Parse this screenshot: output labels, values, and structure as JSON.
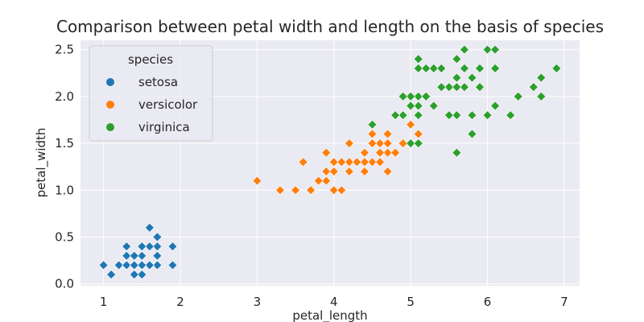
{
  "chart_data": {
    "type": "scatter",
    "title": "Comparison between petal width and length on the basis of species",
    "xlabel": "petal_length",
    "ylabel": "petal_width",
    "xlim": [
      0.7,
      7.2
    ],
    "ylim": [
      -0.02,
      2.6
    ],
    "xticks": [
      1,
      2,
      3,
      4,
      5,
      6,
      7
    ],
    "yticks": [
      0.0,
      0.5,
      1.0,
      1.5,
      2.0,
      2.5
    ],
    "grid": true,
    "marker": "diamond",
    "legend": {
      "title": "species",
      "position": "top-left"
    },
    "series": [
      {
        "name": "setosa",
        "color": "#1f77b4",
        "points": [
          [
            1.4,
            0.2
          ],
          [
            1.4,
            0.2
          ],
          [
            1.3,
            0.2
          ],
          [
            1.5,
            0.2
          ],
          [
            1.4,
            0.2
          ],
          [
            1.7,
            0.4
          ],
          [
            1.4,
            0.3
          ],
          [
            1.5,
            0.2
          ],
          [
            1.4,
            0.2
          ],
          [
            1.5,
            0.1
          ],
          [
            1.5,
            0.2
          ],
          [
            1.6,
            0.2
          ],
          [
            1.4,
            0.1
          ],
          [
            1.1,
            0.1
          ],
          [
            1.2,
            0.2
          ],
          [
            1.5,
            0.4
          ],
          [
            1.3,
            0.4
          ],
          [
            1.4,
            0.3
          ],
          [
            1.7,
            0.3
          ],
          [
            1.5,
            0.3
          ],
          [
            1.7,
            0.2
          ],
          [
            1.5,
            0.4
          ],
          [
            1.0,
            0.2
          ],
          [
            1.7,
            0.5
          ],
          [
            1.9,
            0.2
          ],
          [
            1.6,
            0.2
          ],
          [
            1.6,
            0.4
          ],
          [
            1.5,
            0.2
          ],
          [
            1.4,
            0.2
          ],
          [
            1.6,
            0.2
          ],
          [
            1.6,
            0.2
          ],
          [
            1.5,
            0.4
          ],
          [
            1.5,
            0.1
          ],
          [
            1.4,
            0.2
          ],
          [
            1.5,
            0.2
          ],
          [
            1.2,
            0.2
          ],
          [
            1.3,
            0.2
          ],
          [
            1.4,
            0.1
          ],
          [
            1.3,
            0.2
          ],
          [
            1.5,
            0.2
          ],
          [
            1.3,
            0.3
          ],
          [
            1.3,
            0.3
          ],
          [
            1.3,
            0.2
          ],
          [
            1.6,
            0.6
          ],
          [
            1.9,
            0.4
          ],
          [
            1.4,
            0.3
          ],
          [
            1.6,
            0.2
          ],
          [
            1.4,
            0.2
          ],
          [
            1.5,
            0.2
          ],
          [
            1.4,
            0.2
          ]
        ]
      },
      {
        "name": "versicolor",
        "color": "#ff7f0e",
        "points": [
          [
            4.7,
            1.4
          ],
          [
            4.5,
            1.5
          ],
          [
            4.9,
            1.5
          ],
          [
            4.0,
            1.3
          ],
          [
            4.6,
            1.5
          ],
          [
            4.5,
            1.3
          ],
          [
            4.7,
            1.6
          ],
          [
            3.3,
            1.0
          ],
          [
            4.6,
            1.3
          ],
          [
            3.9,
            1.4
          ],
          [
            3.5,
            1.0
          ],
          [
            4.2,
            1.5
          ],
          [
            4.0,
            1.0
          ],
          [
            4.7,
            1.4
          ],
          [
            3.6,
            1.3
          ],
          [
            4.4,
            1.4
          ],
          [
            4.5,
            1.5
          ],
          [
            4.1,
            1.0
          ],
          [
            4.5,
            1.5
          ],
          [
            3.9,
            1.1
          ],
          [
            4.8,
            1.8
          ],
          [
            4.0,
            1.3
          ],
          [
            4.9,
            1.5
          ],
          [
            4.7,
            1.2
          ],
          [
            4.3,
            1.3
          ],
          [
            4.4,
            1.4
          ],
          [
            4.8,
            1.4
          ],
          [
            5.0,
            1.7
          ],
          [
            4.5,
            1.5
          ],
          [
            3.5,
            1.0
          ],
          [
            3.8,
            1.1
          ],
          [
            3.7,
            1.0
          ],
          [
            3.9,
            1.2
          ],
          [
            5.1,
            1.6
          ],
          [
            4.5,
            1.5
          ],
          [
            4.5,
            1.6
          ],
          [
            4.7,
            1.5
          ],
          [
            4.4,
            1.3
          ],
          [
            4.1,
            1.3
          ],
          [
            4.0,
            1.3
          ],
          [
            4.4,
            1.2
          ],
          [
            4.6,
            1.4
          ],
          [
            4.0,
            1.2
          ],
          [
            3.3,
            1.0
          ],
          [
            4.2,
            1.3
          ],
          [
            4.2,
            1.2
          ],
          [
            4.2,
            1.3
          ],
          [
            4.3,
            1.3
          ],
          [
            3.0,
            1.1
          ],
          [
            4.1,
            1.3
          ]
        ]
      },
      {
        "name": "virginica",
        "color": "#2ca02c",
        "points": [
          [
            6.0,
            2.5
          ],
          [
            5.1,
            1.9
          ],
          [
            5.9,
            2.1
          ],
          [
            5.6,
            1.8
          ],
          [
            5.8,
            2.2
          ],
          [
            6.6,
            2.1
          ],
          [
            4.5,
            1.7
          ],
          [
            6.3,
            1.8
          ],
          [
            5.8,
            1.8
          ],
          [
            6.1,
            2.5
          ],
          [
            5.1,
            2.0
          ],
          [
            5.3,
            1.9
          ],
          [
            5.5,
            2.1
          ],
          [
            5.0,
            2.0
          ],
          [
            5.1,
            2.4
          ],
          [
            5.3,
            2.3
          ],
          [
            5.5,
            1.8
          ],
          [
            6.7,
            2.2
          ],
          [
            6.9,
            2.3
          ],
          [
            5.0,
            1.5
          ],
          [
            5.7,
            2.3
          ],
          [
            4.9,
            2.0
          ],
          [
            6.7,
            2.0
          ],
          [
            4.9,
            1.8
          ],
          [
            5.7,
            2.1
          ],
          [
            6.0,
            1.8
          ],
          [
            4.8,
            1.8
          ],
          [
            4.9,
            1.8
          ],
          [
            5.6,
            2.1
          ],
          [
            5.8,
            1.6
          ],
          [
            6.1,
            1.9
          ],
          [
            6.4,
            2.0
          ],
          [
            5.6,
            2.2
          ],
          [
            5.1,
            1.5
          ],
          [
            5.6,
            1.4
          ],
          [
            6.1,
            2.3
          ],
          [
            5.6,
            2.4
          ],
          [
            5.5,
            1.8
          ],
          [
            4.8,
            1.8
          ],
          [
            5.4,
            2.1
          ],
          [
            5.6,
            2.4
          ],
          [
            5.1,
            2.3
          ],
          [
            5.1,
            1.9
          ],
          [
            5.9,
            2.3
          ],
          [
            5.7,
            2.5
          ],
          [
            5.2,
            2.3
          ],
          [
            5.0,
            1.9
          ],
          [
            5.2,
            2.0
          ],
          [
            5.4,
            2.3
          ],
          [
            5.1,
            1.8
          ]
        ]
      }
    ]
  }
}
